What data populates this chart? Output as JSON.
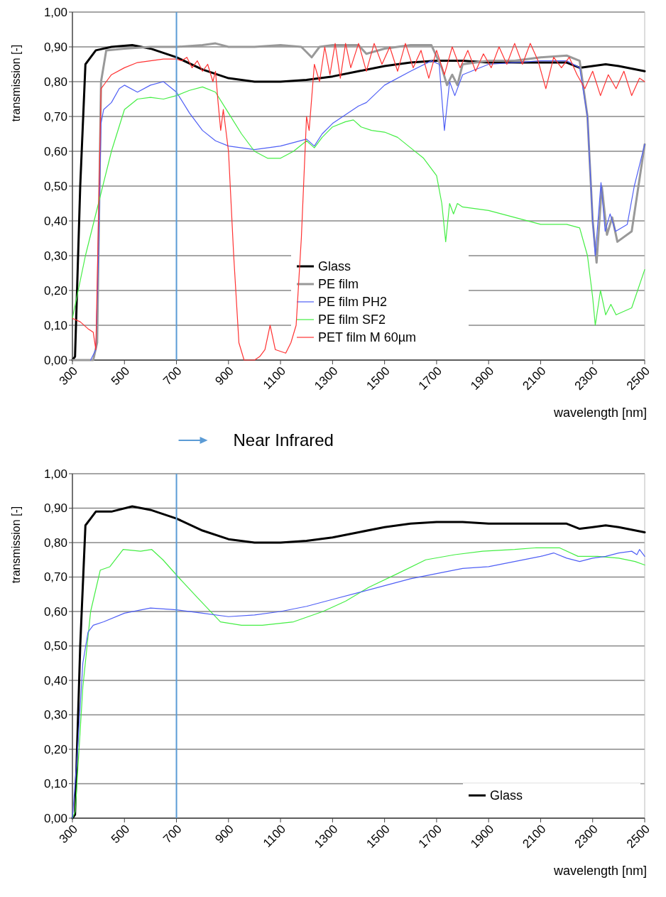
{
  "chart_data": [
    {
      "type": "line",
      "xlabel": "wavelength [nm]",
      "ylabel": "transmission [-]",
      "xlim": [
        300,
        2500
      ],
      "xticks": [
        300,
        500,
        700,
        900,
        1100,
        1300,
        1500,
        1700,
        1900,
        2100,
        2300,
        2500
      ],
      "ylim": [
        0,
        1
      ],
      "yticks": [
        {
          "value": 0,
          "label": "0,00"
        },
        {
          "value": 0.1,
          "label": "0,10"
        },
        {
          "value": 0.2,
          "label": "0,20"
        },
        {
          "value": 0.3,
          "label": "0,30"
        },
        {
          "value": 0.4,
          "label": "0,40"
        },
        {
          "value": 0.5,
          "label": "0,50"
        },
        {
          "value": 0.6,
          "label": "0,60"
        },
        {
          "value": 0.7,
          "label": "0,70"
        },
        {
          "value": 0.8,
          "label": "0,80"
        },
        {
          "value": 0.9,
          "label": "0,90"
        },
        {
          "value": 1,
          "label": "1,00"
        }
      ],
      "grid": "y",
      "legend": "bottom",
      "line_style": "solid",
      "ref_lines": [
        {
          "axis": "x",
          "value": 700,
          "color": "#5b9bd5"
        }
      ],
      "annotations": [
        "Near Infrared"
      ],
      "series": [
        {
          "name": "Glass",
          "color": "#000000",
          "x": [
            300,
            310,
            330,
            350,
            370,
            390,
            450,
            530,
            600,
            700,
            800,
            900,
            1000,
            1100,
            1200,
            1300,
            1400,
            1500,
            1600,
            1700,
            1800,
            1900,
            2000,
            2100,
            2200,
            2250,
            2300,
            2350,
            2400,
            2500
          ],
          "values": [
            0,
            0.01,
            0.5,
            0.85,
            0.87,
            0.89,
            0.9,
            0.905,
            0.895,
            0.87,
            0.835,
            0.81,
            0.8,
            0.8,
            0.805,
            0.815,
            0.83,
            0.845,
            0.855,
            0.86,
            0.86,
            0.855,
            0.855,
            0.855,
            0.855,
            0.84,
            0.845,
            0.85,
            0.845,
            0.83
          ]
        },
        {
          "name": "PE film",
          "color": "#999999",
          "x": [
            300,
            380,
            395,
            410,
            430,
            500,
            600,
            700,
            800,
            850,
            900,
            1000,
            1100,
            1180,
            1220,
            1250,
            1300,
            1400,
            1430,
            1500,
            1600,
            1680,
            1720,
            1740,
            1760,
            1780,
            1800,
            1900,
            2000,
            2100,
            2200,
            2250,
            2280,
            2300,
            2315,
            2335,
            2355,
            2375,
            2395,
            2450,
            2500
          ],
          "values": [
            0,
            0,
            0.05,
            0.8,
            0.89,
            0.895,
            0.9,
            0.9,
            0.905,
            0.91,
            0.9,
            0.9,
            0.905,
            0.9,
            0.87,
            0.9,
            0.905,
            0.905,
            0.88,
            0.895,
            0.905,
            0.905,
            0.84,
            0.79,
            0.82,
            0.79,
            0.85,
            0.86,
            0.86,
            0.87,
            0.875,
            0.86,
            0.7,
            0.4,
            0.28,
            0.5,
            0.36,
            0.41,
            0.34,
            0.37,
            0.62
          ]
        },
        {
          "name": "PE film PH2",
          "color": "#4f5ff5",
          "x": [
            370,
            390,
            400,
            410,
            420,
            450,
            480,
            500,
            550,
            600,
            650,
            700,
            750,
            800,
            850,
            900,
            950,
            1000,
            1100,
            1200,
            1230,
            1260,
            1300,
            1400,
            1430,
            1500,
            1600,
            1680,
            1710,
            1730,
            1750,
            1770,
            1800,
            1900,
            2000,
            2100,
            2200,
            2250,
            2280,
            2300,
            2310,
            2332,
            2348,
            2367,
            2388,
            2433,
            2460,
            2500
          ],
          "values": [
            0,
            0.03,
            0.3,
            0.68,
            0.72,
            0.74,
            0.78,
            0.79,
            0.77,
            0.79,
            0.8,
            0.77,
            0.71,
            0.66,
            0.63,
            0.615,
            0.61,
            0.605,
            0.615,
            0.635,
            0.615,
            0.65,
            0.68,
            0.73,
            0.74,
            0.79,
            0.83,
            0.86,
            0.85,
            0.66,
            0.8,
            0.76,
            0.82,
            0.85,
            0.855,
            0.86,
            0.86,
            0.84,
            0.7,
            0.4,
            0.3,
            0.51,
            0.37,
            0.42,
            0.37,
            0.39,
            0.5,
            0.62
          ]
        },
        {
          "name": "PE film SF2",
          "color": "#44ee44",
          "x": [
            300,
            350,
            400,
            450,
            500,
            550,
            600,
            650,
            700,
            750,
            800,
            850,
            900,
            950,
            1000,
            1050,
            1100,
            1150,
            1200,
            1230,
            1260,
            1300,
            1350,
            1380,
            1410,
            1450,
            1500,
            1550,
            1600,
            1650,
            1700,
            1720,
            1735,
            1750,
            1765,
            1780,
            1800,
            1900,
            2000,
            2100,
            2200,
            2250,
            2280,
            2300,
            2310,
            2330,
            2350,
            2370,
            2390,
            2450,
            2500
          ],
          "values": [
            0.12,
            0.3,
            0.45,
            0.6,
            0.72,
            0.75,
            0.755,
            0.75,
            0.76,
            0.775,
            0.785,
            0.77,
            0.71,
            0.65,
            0.6,
            0.58,
            0.58,
            0.6,
            0.63,
            0.61,
            0.64,
            0.67,
            0.685,
            0.69,
            0.67,
            0.66,
            0.655,
            0.64,
            0.61,
            0.58,
            0.53,
            0.45,
            0.34,
            0.45,
            0.42,
            0.45,
            0.44,
            0.43,
            0.41,
            0.39,
            0.39,
            0.38,
            0.3,
            0.18,
            0.1,
            0.2,
            0.13,
            0.16,
            0.13,
            0.15,
            0.26
          ]
        },
        {
          "name": "PET film M 60µm",
          "color": "#ff3333",
          "x": [
            300,
            330,
            360,
            380,
            390,
            400,
            410,
            430,
            450,
            500,
            550,
            600,
            650,
            700,
            720,
            740,
            760,
            780,
            800,
            820,
            840,
            850,
            860,
            870,
            880,
            900,
            920,
            940,
            960,
            1000,
            1020,
            1040,
            1060,
            1080,
            1120,
            1140,
            1160,
            1180,
            1200,
            1210,
            1230,
            1250,
            1270,
            1290,
            1310,
            1330,
            1350,
            1370,
            1400,
            1430,
            1460,
            1490,
            1520,
            1550,
            1580,
            1610,
            1640,
            1670,
            1700,
            1730,
            1760,
            1790,
            1820,
            1850,
            1880,
            1910,
            1940,
            1970,
            2000,
            2030,
            2060,
            2090,
            2120,
            2150,
            2180,
            2210,
            2240,
            2270,
            2300,
            2330,
            2360,
            2390,
            2420,
            2450,
            2480,
            2500
          ],
          "values": [
            0.12,
            0.11,
            0.09,
            0.08,
            0.03,
            0.4,
            0.78,
            0.8,
            0.82,
            0.84,
            0.855,
            0.86,
            0.865,
            0.865,
            0.86,
            0.87,
            0.84,
            0.86,
            0.83,
            0.85,
            0.8,
            0.83,
            0.74,
            0.66,
            0.72,
            0.6,
            0.3,
            0.05,
            0,
            0,
            0.01,
            0.03,
            0.1,
            0.03,
            0.02,
            0.05,
            0.1,
            0.35,
            0.7,
            0.66,
            0.85,
            0.8,
            0.9,
            0.82,
            0.91,
            0.81,
            0.91,
            0.84,
            0.91,
            0.83,
            0.91,
            0.85,
            0.9,
            0.83,
            0.91,
            0.84,
            0.89,
            0.81,
            0.89,
            0.82,
            0.9,
            0.84,
            0.89,
            0.83,
            0.88,
            0.84,
            0.9,
            0.85,
            0.91,
            0.85,
            0.91,
            0.86,
            0.78,
            0.87,
            0.84,
            0.87,
            0.82,
            0.78,
            0.83,
            0.76,
            0.82,
            0.78,
            0.83,
            0.76,
            0.81,
            0.8
          ]
        }
      ]
    },
    {
      "type": "line",
      "xlabel": "wavelength [nm]",
      "ylabel": "transmission [-]",
      "xlim": [
        300,
        2500
      ],
      "xticks": [
        300,
        500,
        700,
        900,
        1100,
        1300,
        1500,
        1700,
        1900,
        2100,
        2300,
        2500
      ],
      "ylim": [
        0,
        1
      ],
      "yticks": [
        {
          "value": 0,
          "label": "0,00"
        },
        {
          "value": 0.1,
          "label": "0,10"
        },
        {
          "value": 0.2,
          "label": "0,20"
        },
        {
          "value": 0.3,
          "label": "0,30"
        },
        {
          "value": 0.4,
          "label": "0,40"
        },
        {
          "value": 0.5,
          "label": "0,50"
        },
        {
          "value": 0.6,
          "label": "0,60"
        },
        {
          "value": 0.7,
          "label": "0,70"
        },
        {
          "value": 0.8,
          "label": "0,80"
        },
        {
          "value": 0.9,
          "label": "0,90"
        },
        {
          "value": 1,
          "label": "1,00"
        }
      ],
      "grid": "y",
      "legend": "bottom right",
      "line_style": "solid",
      "ref_lines": [
        {
          "axis": "x",
          "value": 700,
          "color": "#5b9bd5"
        }
      ],
      "series": [
        {
          "name": "Glass",
          "color": "#000000",
          "x": [
            300,
            310,
            330,
            350,
            370,
            390,
            450,
            530,
            600,
            700,
            800,
            900,
            1000,
            1100,
            1200,
            1300,
            1400,
            1500,
            1600,
            1700,
            1800,
            1900,
            2000,
            2100,
            2200,
            2250,
            2300,
            2350,
            2400,
            2500
          ],
          "values": [
            0,
            0.01,
            0.5,
            0.85,
            0.87,
            0.89,
            0.89,
            0.905,
            0.895,
            0.87,
            0.835,
            0.81,
            0.8,
            0.8,
            0.805,
            0.815,
            0.83,
            0.845,
            0.855,
            0.86,
            0.86,
            0.855,
            0.855,
            0.855,
            0.855,
            0.84,
            0.845,
            0.85,
            0.845,
            0.83
          ]
        },
        {
          "color": "#44ee44",
          "x": [
            300,
            311,
            340,
            370,
            407,
            444,
            495,
            562,
            605,
            648,
            707,
            781,
            869,
            950,
            1030,
            1150,
            1263,
            1350,
            1439,
            1550,
            1658,
            1770,
            1877,
            2000,
            2084,
            2172,
            2244,
            2318,
            2400,
            2463,
            2500
          ],
          "values": [
            0,
            0.02,
            0.38,
            0.6,
            0.72,
            0.73,
            0.78,
            0.775,
            0.78,
            0.75,
            0.7,
            0.64,
            0.57,
            0.56,
            0.56,
            0.57,
            0.6,
            0.63,
            0.67,
            0.71,
            0.75,
            0.765,
            0.775,
            0.78,
            0.785,
            0.785,
            0.76,
            0.76,
            0.755,
            0.745,
            0.735
          ]
        },
        {
          "color": "#4f5ff5",
          "x": [
            300,
            320,
            340,
            360,
            380,
            420,
            500,
            600,
            700,
            800,
            900,
            1000,
            1100,
            1200,
            1300,
            1400,
            1500,
            1600,
            1700,
            1800,
            1900,
            2000,
            2100,
            2150,
            2200,
            2250,
            2300,
            2350,
            2400,
            2450,
            2470,
            2480,
            2500
          ],
          "values": [
            0,
            0.2,
            0.45,
            0.54,
            0.56,
            0.57,
            0.595,
            0.61,
            0.605,
            0.595,
            0.585,
            0.59,
            0.6,
            0.615,
            0.635,
            0.655,
            0.675,
            0.695,
            0.71,
            0.725,
            0.73,
            0.745,
            0.76,
            0.77,
            0.755,
            0.745,
            0.755,
            0.76,
            0.77,
            0.775,
            0.765,
            0.78,
            0.76
          ]
        }
      ]
    }
  ]
}
